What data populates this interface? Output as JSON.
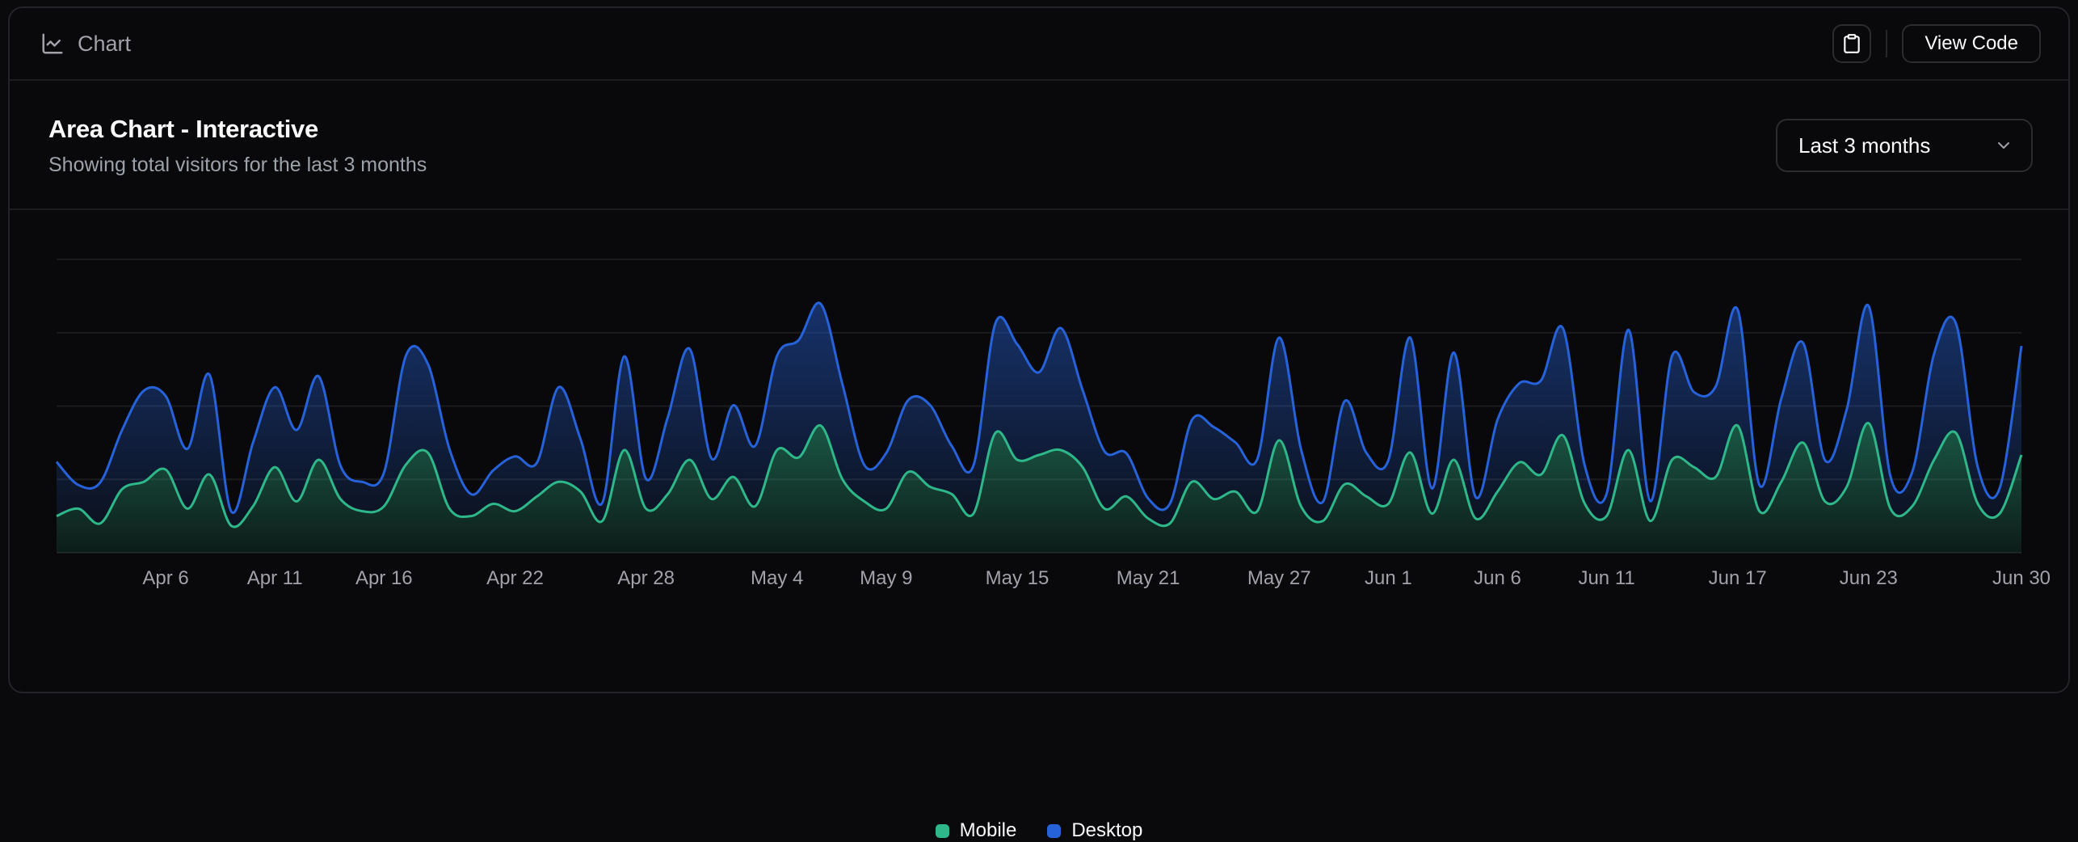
{
  "header": {
    "title": "Chart",
    "view_code_label": "View Code"
  },
  "card": {
    "title": "Area Chart - Interactive",
    "subtitle": "Showing total visitors for the last 3 months",
    "range_select": {
      "value": "Last 3 months"
    }
  },
  "chart_data": {
    "type": "area",
    "stacked": true,
    "curve": "natural",
    "grid": "horizontal",
    "legend_position": "bottom-center",
    "y_axis_hidden": true,
    "y_ticks": [
      0,
      300,
      600,
      900,
      1200
    ],
    "x": [
      "2024-04-01",
      "2024-04-02",
      "2024-04-03",
      "2024-04-04",
      "2024-04-05",
      "2024-04-06",
      "2024-04-07",
      "2024-04-08",
      "2024-04-09",
      "2024-04-10",
      "2024-04-11",
      "2024-04-12",
      "2024-04-13",
      "2024-04-14",
      "2024-04-15",
      "2024-04-16",
      "2024-04-17",
      "2024-04-18",
      "2024-04-19",
      "2024-04-20",
      "2024-04-21",
      "2024-04-22",
      "2024-04-23",
      "2024-04-24",
      "2024-04-25",
      "2024-04-26",
      "2024-04-27",
      "2024-04-28",
      "2024-04-29",
      "2024-04-30",
      "2024-05-01",
      "2024-05-02",
      "2024-05-03",
      "2024-05-04",
      "2024-05-05",
      "2024-05-06",
      "2024-05-07",
      "2024-05-08",
      "2024-05-09",
      "2024-05-10",
      "2024-05-11",
      "2024-05-12",
      "2024-05-13",
      "2024-05-14",
      "2024-05-15",
      "2024-05-16",
      "2024-05-17",
      "2024-05-18",
      "2024-05-19",
      "2024-05-20",
      "2024-05-21",
      "2024-05-22",
      "2024-05-23",
      "2024-05-24",
      "2024-05-25",
      "2024-05-26",
      "2024-05-27",
      "2024-05-28",
      "2024-05-29",
      "2024-05-30",
      "2024-05-31",
      "2024-06-01",
      "2024-06-02",
      "2024-06-03",
      "2024-06-04",
      "2024-06-05",
      "2024-06-06",
      "2024-06-07",
      "2024-06-08",
      "2024-06-09",
      "2024-06-10",
      "2024-06-11",
      "2024-06-12",
      "2024-06-13",
      "2024-06-14",
      "2024-06-15",
      "2024-06-16",
      "2024-06-17",
      "2024-06-18",
      "2024-06-19",
      "2024-06-20",
      "2024-06-21",
      "2024-06-22",
      "2024-06-23",
      "2024-06-24",
      "2024-06-25",
      "2024-06-26",
      "2024-06-27",
      "2024-06-28",
      "2024-06-29",
      "2024-06-30"
    ],
    "series": [
      {
        "name": "Mobile",
        "color": "#2eb88a",
        "values": [
          150,
          180,
          120,
          260,
          290,
          340,
          180,
          320,
          110,
          190,
          350,
          210,
          380,
          220,
          170,
          190,
          360,
          410,
          180,
          150,
          200,
          170,
          230,
          290,
          250,
          130,
          420,
          180,
          240,
          380,
          220,
          310,
          190,
          420,
          390,
          520,
          300,
          210,
          180,
          330,
          270,
          240,
          160,
          490,
          380,
          400,
          420,
          350,
          180,
          230,
          140,
          120,
          290,
          220,
          250,
          170,
          460,
          190,
          130,
          280,
          230,
          200,
          410,
          160,
          380,
          140,
          250,
          370,
          320,
          480,
          200,
          150,
          420,
          130,
          380,
          350,
          310,
          520,
          170,
          290,
          450,
          210,
          270,
          530,
          180,
          190,
          380,
          490,
          200,
          160,
          400
        ]
      },
      {
        "name": "Desktop",
        "color": "#2662d9",
        "values": [
          222,
          97,
          167,
          242,
          373,
          301,
          245,
          409,
          59,
          261,
          327,
          292,
          342,
          137,
          120,
          138,
          446,
          364,
          243,
          89,
          137,
          224,
          138,
          387,
          215,
          75,
          383,
          122,
          315,
          454,
          165,
          293,
          247,
          385,
          481,
          498,
          388,
          149,
          227,
          293,
          335,
          197,
          197,
          448,
          473,
          338,
          499,
          315,
          235,
          177,
          82,
          81,
          252,
          294,
          201,
          213,
          420,
          233,
          78,
          340,
          178,
          178,
          470,
          103,
          439,
          88,
          294,
          323,
          385,
          438,
          155,
          92,
          492,
          81,
          426,
          307,
          371,
          475,
          107,
          341,
          408,
          169,
          317,
          480,
          132,
          141,
          434,
          448,
          149,
          103,
          446
        ]
      }
    ],
    "x_ticks": [
      {
        "label": "Apr 6",
        "index": 5
      },
      {
        "label": "Apr 11",
        "index": 10
      },
      {
        "label": "Apr 16",
        "index": 15
      },
      {
        "label": "Apr 22",
        "index": 21
      },
      {
        "label": "Apr 28",
        "index": 27
      },
      {
        "label": "May 4",
        "index": 33
      },
      {
        "label": "May 9",
        "index": 38
      },
      {
        "label": "May 15",
        "index": 44
      },
      {
        "label": "May 21",
        "index": 50
      },
      {
        "label": "May 27",
        "index": 56
      },
      {
        "label": "Jun 1",
        "index": 61
      },
      {
        "label": "Jun 6",
        "index": 66
      },
      {
        "label": "Jun 11",
        "index": 71
      },
      {
        "label": "Jun 17",
        "index": 77
      },
      {
        "label": "Jun 23",
        "index": 83
      },
      {
        "label": "Jun 30",
        "index": 90
      }
    ],
    "colors": {
      "grid": "rgba(255,255,255,0.08)",
      "tick_text": "#a1a1aa"
    }
  }
}
